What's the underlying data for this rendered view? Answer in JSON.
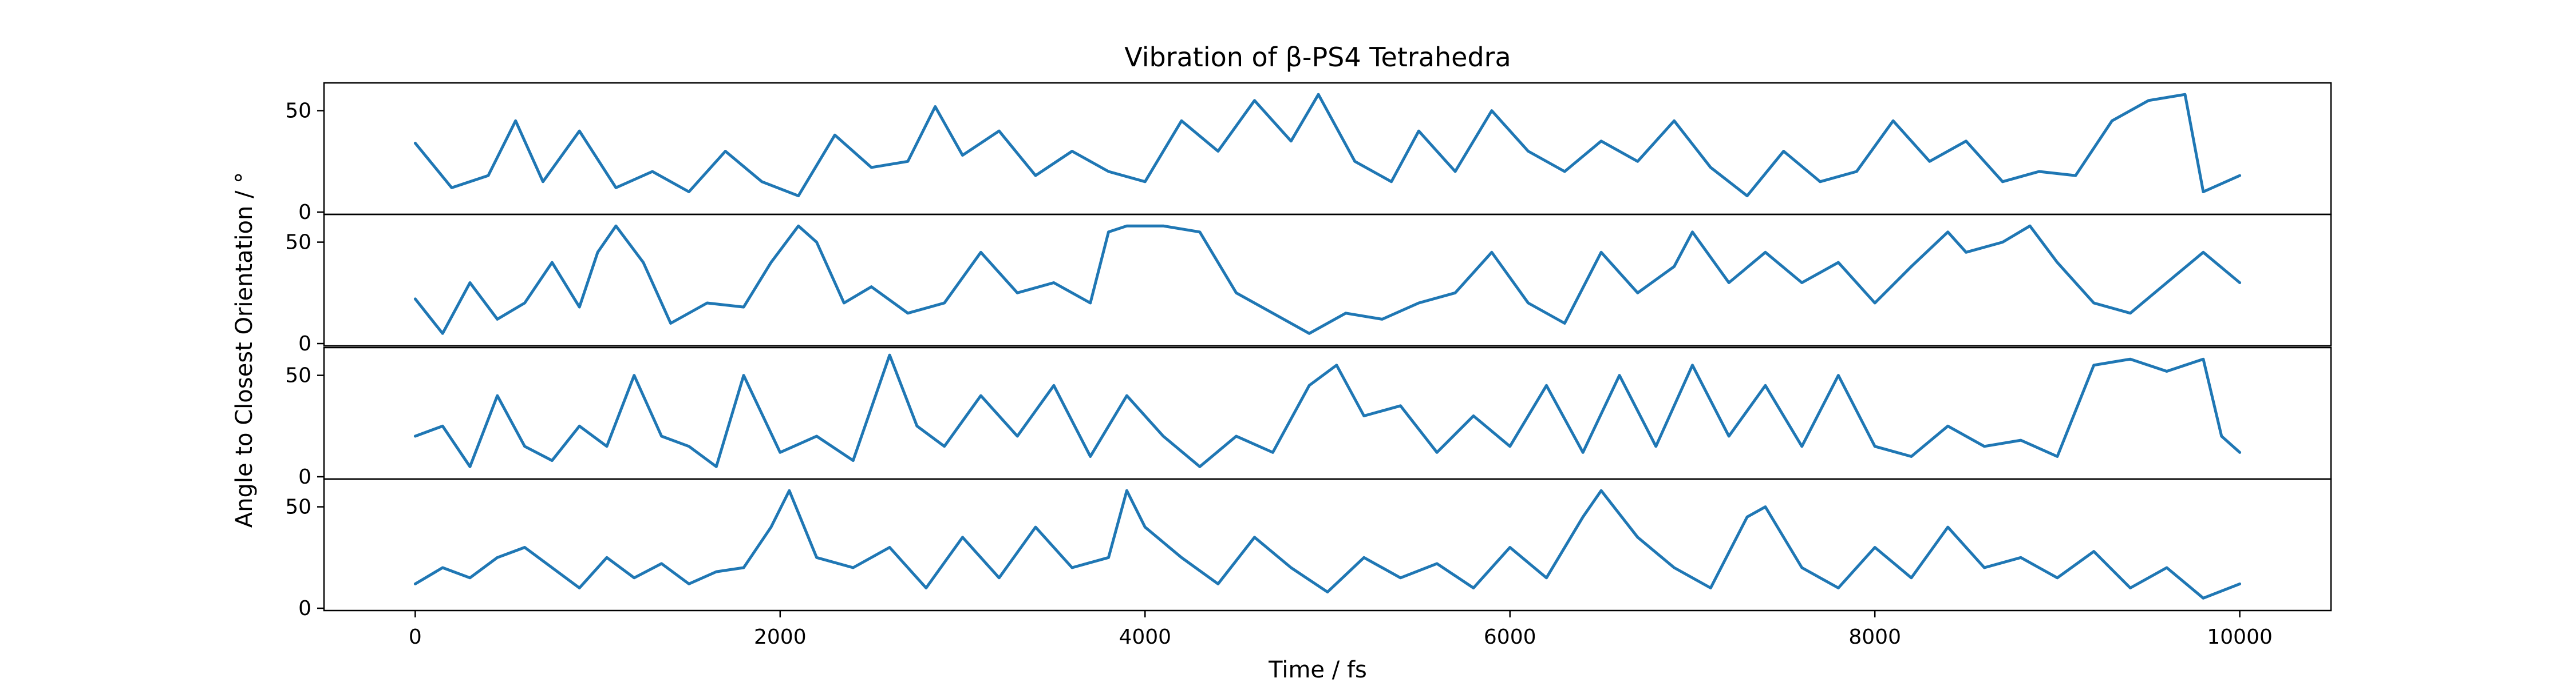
{
  "chart_data": {
    "type": "line",
    "title": "Vibration of β-PS4 Tetrahedra",
    "xlabel": "Time / fs",
    "ylabel": "Angle to Closest Orientation / °",
    "xlim": [
      -500,
      10500
    ],
    "ylim": [
      0,
      62
    ],
    "x_ticks": [
      0,
      2000,
      4000,
      6000,
      8000,
      10000
    ],
    "y_ticks": [
      0,
      50
    ],
    "line_color": "#1f77b4",
    "grid": false,
    "legend": "none",
    "panels": [
      {
        "x": [
          0,
          200,
          400,
          550,
          700,
          900,
          1100,
          1300,
          1500,
          1700,
          1900,
          2100,
          2300,
          2500,
          2700,
          2850,
          3000,
          3200,
          3400,
          3600,
          3800,
          4000,
          4200,
          4400,
          4600,
          4800,
          4950,
          5150,
          5350,
          5500,
          5700,
          5900,
          6100,
          6300,
          6500,
          6700,
          6900,
          7100,
          7300,
          7500,
          7700,
          7900,
          8100,
          8300,
          8500,
          8700,
          8900,
          9100,
          9300,
          9500,
          9700,
          9800,
          10000
        ],
        "y": [
          34,
          12,
          18,
          45,
          15,
          40,
          12,
          20,
          10,
          30,
          15,
          8,
          38,
          22,
          25,
          52,
          28,
          40,
          18,
          30,
          20,
          15,
          45,
          30,
          55,
          35,
          58,
          25,
          15,
          40,
          20,
          50,
          30,
          20,
          35,
          25,
          45,
          22,
          8,
          30,
          15,
          20,
          45,
          25,
          35,
          15,
          20,
          18,
          45,
          55,
          58,
          10,
          18
        ]
      },
      {
        "x": [
          0,
          150,
          300,
          450,
          600,
          750,
          900,
          1000,
          1100,
          1250,
          1400,
          1600,
          1800,
          1950,
          2100,
          2200,
          2350,
          2500,
          2700,
          2900,
          3100,
          3300,
          3500,
          3700,
          3800,
          3900,
          4100,
          4300,
          4500,
          4700,
          4900,
          5100,
          5300,
          5500,
          5700,
          5900,
          6100,
          6300,
          6500,
          6700,
          6900,
          7000,
          7200,
          7400,
          7600,
          7800,
          8000,
          8200,
          8400,
          8500,
          8700,
          8850,
          9000,
          9200,
          9400,
          9600,
          9800,
          10000
        ],
        "y": [
          22,
          5,
          30,
          12,
          20,
          40,
          18,
          45,
          58,
          40,
          10,
          20,
          18,
          40,
          58,
          50,
          20,
          28,
          15,
          20,
          45,
          25,
          30,
          20,
          55,
          58,
          58,
          55,
          25,
          15,
          5,
          15,
          12,
          20,
          25,
          45,
          20,
          10,
          45,
          25,
          38,
          55,
          30,
          45,
          30,
          40,
          20,
          38,
          55,
          45,
          50,
          58,
          40,
          20,
          15,
          30,
          45,
          30
        ]
      },
      {
        "x": [
          0,
          150,
          300,
          450,
          600,
          750,
          900,
          1050,
          1200,
          1350,
          1500,
          1650,
          1800,
          2000,
          2200,
          2400,
          2600,
          2750,
          2900,
          3100,
          3300,
          3500,
          3700,
          3900,
          4100,
          4300,
          4500,
          4700,
          4900,
          5050,
          5200,
          5400,
          5600,
          5800,
          6000,
          6200,
          6400,
          6600,
          6800,
          7000,
          7200,
          7400,
          7600,
          7800,
          8000,
          8200,
          8400,
          8600,
          8800,
          9000,
          9200,
          9400,
          9600,
          9800,
          9900,
          10000
        ],
        "y": [
          20,
          25,
          5,
          40,
          15,
          8,
          25,
          15,
          50,
          20,
          15,
          5,
          50,
          12,
          20,
          8,
          60,
          25,
          15,
          40,
          20,
          45,
          10,
          40,
          20,
          5,
          20,
          12,
          45,
          55,
          30,
          35,
          12,
          30,
          15,
          45,
          12,
          50,
          15,
          55,
          20,
          45,
          15,
          50,
          15,
          10,
          25,
          15,
          18,
          10,
          55,
          58,
          52,
          58,
          20,
          12
        ]
      },
      {
        "x": [
          0,
          150,
          300,
          450,
          600,
          750,
          900,
          1050,
          1200,
          1350,
          1500,
          1650,
          1800,
          1950,
          2050,
          2200,
          2400,
          2600,
          2800,
          3000,
          3200,
          3400,
          3600,
          3800,
          3900,
          4000,
          4200,
          4400,
          4600,
          4800,
          5000,
          5200,
          5400,
          5600,
          5800,
          6000,
          6200,
          6400,
          6500,
          6700,
          6900,
          7100,
          7300,
          7400,
          7600,
          7800,
          8000,
          8200,
          8400,
          8600,
          8800,
          9000,
          9200,
          9400,
          9600,
          9800,
          10000
        ],
        "y": [
          12,
          20,
          15,
          25,
          30,
          20,
          10,
          25,
          15,
          22,
          12,
          18,
          20,
          40,
          58,
          25,
          20,
          30,
          10,
          35,
          15,
          40,
          20,
          25,
          58,
          40,
          25,
          12,
          35,
          20,
          8,
          25,
          15,
          22,
          10,
          30,
          15,
          45,
          58,
          35,
          20,
          10,
          45,
          50,
          20,
          10,
          30,
          15,
          40,
          20,
          25,
          15,
          28,
          10,
          20,
          5,
          12
        ]
      }
    ]
  }
}
